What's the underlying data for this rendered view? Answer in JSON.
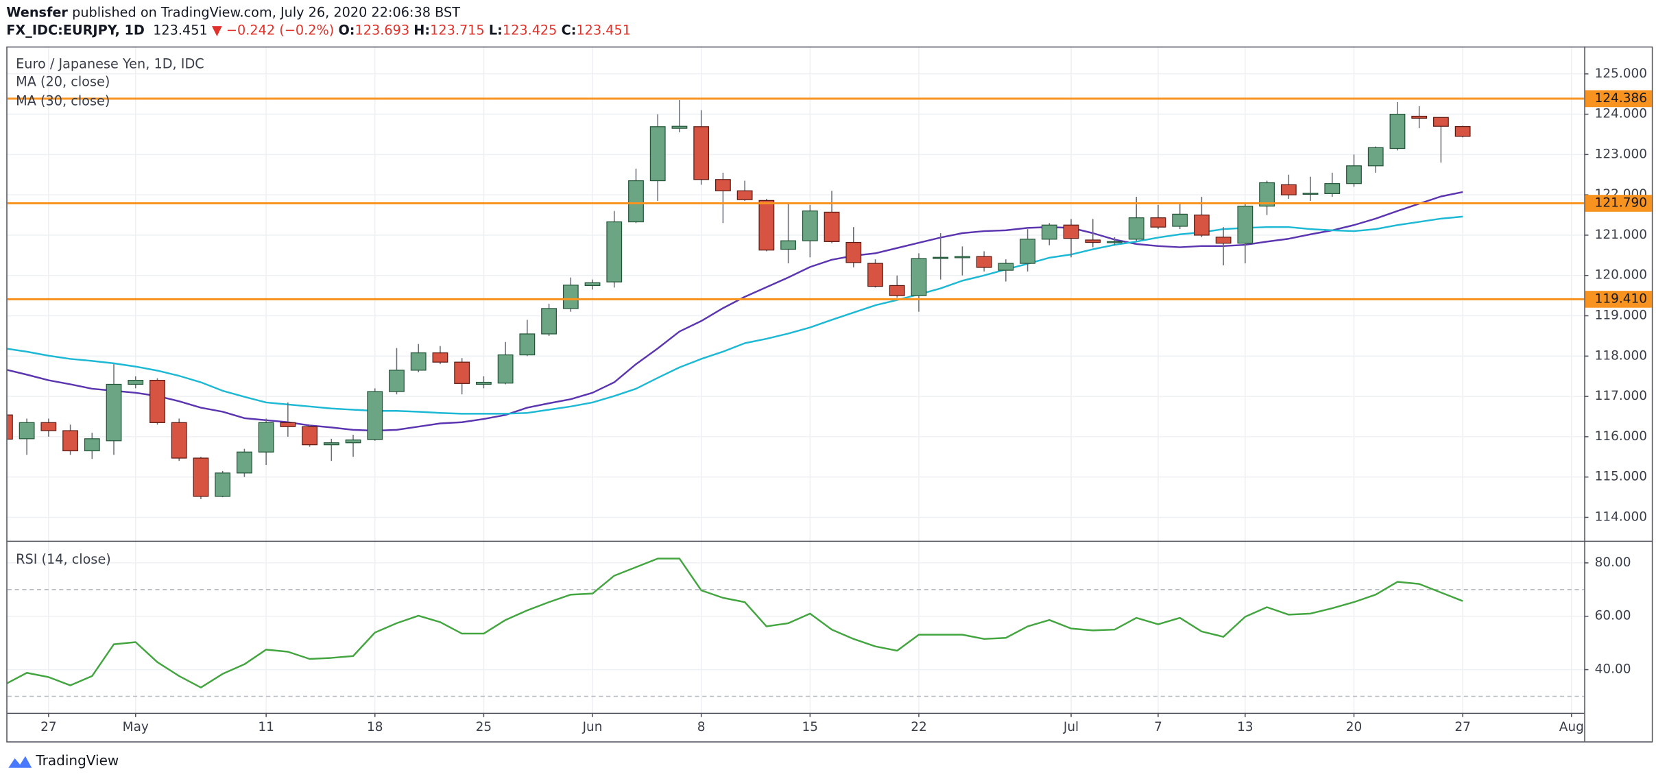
{
  "header": {
    "author": "Wensfer",
    "published": "published on TradingView.com, July 26, 2020 22:06:38 BST",
    "symbol": "FX_IDC:EURJPY, 1D",
    "change": "▼ −0.242 (−0.2%)",
    "open_label": "O:",
    "high_label": "H:",
    "low_label": "L:",
    "close_label": "C:"
  },
  "chart_data": [
    {
      "type": "candlestick",
      "title": "Euro / Japanese Yen, 1D, IDC",
      "categories": [
        null,
        null,
        "27",
        null,
        null,
        null,
        "May",
        null,
        null,
        null,
        null,
        null,
        "11",
        null,
        null,
        null,
        null,
        "18",
        null,
        null,
        null,
        null,
        "25",
        null,
        null,
        null,
        null,
        "Jun",
        null,
        null,
        null,
        null,
        "8",
        null,
        null,
        null,
        null,
        "15",
        null,
        null,
        null,
        null,
        "22",
        null,
        null,
        null,
        null,
        null,
        null,
        "Jul",
        null,
        null,
        null,
        "7",
        null,
        null,
        null,
        "13",
        null,
        null,
        null,
        null,
        "20",
        null,
        null,
        null,
        null,
        "27",
        null,
        null,
        null,
        null,
        "Aug"
      ],
      "open": [
        116.54,
        115.95,
        116.35,
        116.15,
        115.65,
        115.9,
        117.3,
        117.4,
        116.35,
        115.47,
        114.52,
        115.1,
        115.62,
        116.35,
        116.25,
        115.8,
        115.85,
        115.93,
        117.12,
        117.65,
        118.08,
        117.85,
        117.3,
        117.33,
        118.03,
        118.55,
        119.18,
        119.75,
        119.84,
        121.33,
        122.35,
        123.65,
        123.69,
        122.38,
        122.1,
        121.86,
        120.65,
        120.86,
        121.57,
        120.82,
        120.3,
        119.75,
        119.5,
        120.42,
        120.44,
        120.47,
        120.13,
        120.3,
        120.9,
        121.25,
        120.88,
        120.82,
        120.9,
        121.43,
        121.22,
        121.5,
        120.95,
        120.8,
        121.72,
        122.25,
        122.02,
        122.03,
        122.28,
        122.72,
        123.15,
        123.95,
        123.92,
        123.693,
        null,
        null,
        null,
        null,
        null
      ],
      "high": [
        116.7,
        116.45,
        116.45,
        116.3,
        116.1,
        117.8,
        117.5,
        117.45,
        116.45,
        115.5,
        115.15,
        115.7,
        116.45,
        116.85,
        116.3,
        115.95,
        116.05,
        117.2,
        118.2,
        118.3,
        118.25,
        117.95,
        117.5,
        118.35,
        118.9,
        119.3,
        119.95,
        119.9,
        121.6,
        122.65,
        124.0,
        124.35,
        124.1,
        122.55,
        122.35,
        121.9,
        121.8,
        121.75,
        122.1,
        121.2,
        120.4,
        120.0,
        120.55,
        121.05,
        120.72,
        120.6,
        120.4,
        121.15,
        121.3,
        121.4,
        121.4,
        120.95,
        121.95,
        121.75,
        121.8,
        121.95,
        121.2,
        121.8,
        122.35,
        122.5,
        122.45,
        122.55,
        123.0,
        123.2,
        124.3,
        124.2,
        123.92,
        123.715,
        null,
        null,
        null,
        null,
        null
      ],
      "low": [
        115.8,
        115.55,
        116.0,
        115.55,
        115.45,
        115.55,
        117.2,
        116.3,
        115.4,
        114.45,
        114.5,
        115.0,
        115.3,
        116.0,
        115.75,
        115.4,
        115.5,
        115.9,
        117.05,
        117.6,
        117.8,
        117.05,
        117.2,
        117.3,
        118.0,
        118.5,
        119.1,
        119.65,
        119.7,
        121.3,
        121.85,
        123.55,
        122.25,
        121.3,
        121.85,
        120.6,
        120.3,
        120.45,
        120.8,
        120.2,
        119.7,
        119.45,
        119.1,
        119.9,
        120.0,
        120.1,
        119.85,
        120.1,
        120.75,
        120.45,
        120.7,
        120.75,
        120.85,
        121.15,
        121.15,
        120.95,
        120.25,
        120.3,
        121.5,
        121.9,
        121.85,
        121.95,
        122.2,
        122.55,
        123.1,
        123.65,
        122.8,
        123.425,
        null,
        null,
        null,
        null,
        null
      ],
      "close": [
        115.94,
        116.35,
        116.15,
        115.65,
        115.95,
        117.3,
        117.4,
        116.35,
        115.47,
        114.52,
        115.1,
        115.62,
        116.35,
        116.25,
        115.8,
        115.85,
        115.92,
        117.12,
        117.65,
        118.08,
        117.85,
        117.32,
        117.35,
        118.03,
        118.55,
        119.18,
        119.76,
        119.82,
        121.33,
        122.35,
        123.69,
        123.7,
        122.38,
        122.1,
        121.88,
        120.63,
        120.86,
        121.6,
        120.84,
        120.32,
        119.73,
        119.5,
        120.42,
        120.45,
        120.47,
        120.2,
        120.3,
        120.9,
        121.25,
        120.92,
        120.82,
        120.84,
        121.43,
        121.2,
        121.52,
        121.0,
        120.8,
        121.72,
        122.3,
        122.0,
        122.04,
        122.28,
        122.72,
        123.17,
        124.0,
        123.9,
        123.7,
        123.451,
        null,
        null,
        null,
        null,
        null
      ],
      "up_color": "#6ba583",
      "down_color": "#d75442",
      "series": [
        {
          "name": "MA (20, close)",
          "color": "#5b35b0",
          "values": [
            117.67,
            117.54,
            117.4,
            117.3,
            117.19,
            117.14,
            117.09,
            117.01,
            116.88,
            116.72,
            116.62,
            116.46,
            116.41,
            116.36,
            116.28,
            116.23,
            116.17,
            116.15,
            116.17,
            116.25,
            116.33,
            116.36,
            116.44,
            116.54,
            116.72,
            116.83,
            116.93,
            117.09,
            117.35,
            117.8,
            118.19,
            118.61,
            118.87,
            119.19,
            119.47,
            119.71,
            119.95,
            120.21,
            120.39,
            120.49,
            120.55,
            120.68,
            120.81,
            120.94,
            121.05,
            121.1,
            121.12,
            121.18,
            121.2,
            121.18,
            121.05,
            120.89,
            120.78,
            120.73,
            120.7,
            120.73,
            120.73,
            120.76,
            120.84,
            120.91,
            121.02,
            121.12,
            121.25,
            121.41,
            121.6,
            121.78,
            121.96,
            122.07,
            null,
            null,
            null,
            null,
            null
          ]
        },
        {
          "name": "MA (30, close)",
          "color": "#1cb8d4",
          "values": [
            118.19,
            118.11,
            118.01,
            117.93,
            117.88,
            117.82,
            117.74,
            117.64,
            117.51,
            117.35,
            117.14,
            116.99,
            116.85,
            116.8,
            116.75,
            116.7,
            116.67,
            116.64,
            116.64,
            116.62,
            116.59,
            116.57,
            116.57,
            116.57,
            116.59,
            116.67,
            116.75,
            116.85,
            117.01,
            117.19,
            117.46,
            117.72,
            117.93,
            118.11,
            118.32,
            118.43,
            118.56,
            118.71,
            118.9,
            119.08,
            119.26,
            119.39,
            119.53,
            119.68,
            119.87,
            120.0,
            120.15,
            120.29,
            120.44,
            120.52,
            120.65,
            120.76,
            120.84,
            120.94,
            121.02,
            121.07,
            121.15,
            121.18,
            121.2,
            121.2,
            121.15,
            121.12,
            121.1,
            121.15,
            121.25,
            121.33,
            121.41,
            121.46,
            null,
            null,
            null,
            null,
            null
          ]
        }
      ],
      "levels": [
        {
          "value": 124.386,
          "label": "124.386"
        },
        {
          "value": 121.79,
          "label": "121.790"
        },
        {
          "value": 119.41,
          "label": "119.410"
        }
      ],
      "level_color": "#f7931e",
      "ylim": [
        113.42,
        125.68
      ],
      "yticks": [
        {
          "value": 114,
          "label": "114.000"
        },
        {
          "value": 115,
          "label": "115.000"
        },
        {
          "value": 116,
          "label": "116.000"
        },
        {
          "value": 117,
          "label": "117.000"
        },
        {
          "value": 118,
          "label": "118.000"
        },
        {
          "value": 119,
          "label": "119.000"
        },
        {
          "value": 120,
          "label": "120.000"
        },
        {
          "value": 121,
          "label": "121.000"
        },
        {
          "value": 122,
          "label": "122.000"
        },
        {
          "value": 123,
          "label": "123.000"
        },
        {
          "value": 124,
          "label": "124.000"
        },
        {
          "value": 125,
          "label": "125.000"
        }
      ],
      "grid": true
    },
    {
      "type": "line",
      "title": "RSI (14, close)",
      "color": "#43a53f",
      "values": [
        34.5,
        38.8,
        37.2,
        34.1,
        37.6,
        49.5,
        50.3,
        42.8,
        37.6,
        33.3,
        38.4,
        42.0,
        47.5,
        46.7,
        44.0,
        44.4,
        45.1,
        53.9,
        57.4,
        60.2,
        57.8,
        53.5,
        53.5,
        58.6,
        62.2,
        65.3,
        68.1,
        68.5,
        75.2,
        78.4,
        81.6,
        81.6,
        69.7,
        66.9,
        65.3,
        56.2,
        57.4,
        61.0,
        55.0,
        51.5,
        48.7,
        47.1,
        53.1,
        53.1,
        53.1,
        51.5,
        51.9,
        56.2,
        58.6,
        55.4,
        54.7,
        55.0,
        59.4,
        57.0,
        59.4,
        54.3,
        52.3,
        59.8,
        63.4,
        60.6,
        61.0,
        63.0,
        65.3,
        68.1,
        72.9,
        72.1,
        68.9,
        65.7,
        null,
        null,
        null,
        null,
        null
      ],
      "reference_lines": [
        70,
        30
      ],
      "ylim": [
        23.8,
        88.3
      ],
      "yticks": [
        {
          "value": 40,
          "label": "40.00"
        },
        {
          "value": 60,
          "label": "60.00"
        },
        {
          "value": 80,
          "label": "80.00"
        }
      ],
      "grid": true
    }
  ],
  "footer": {
    "brand": "TradingView"
  }
}
